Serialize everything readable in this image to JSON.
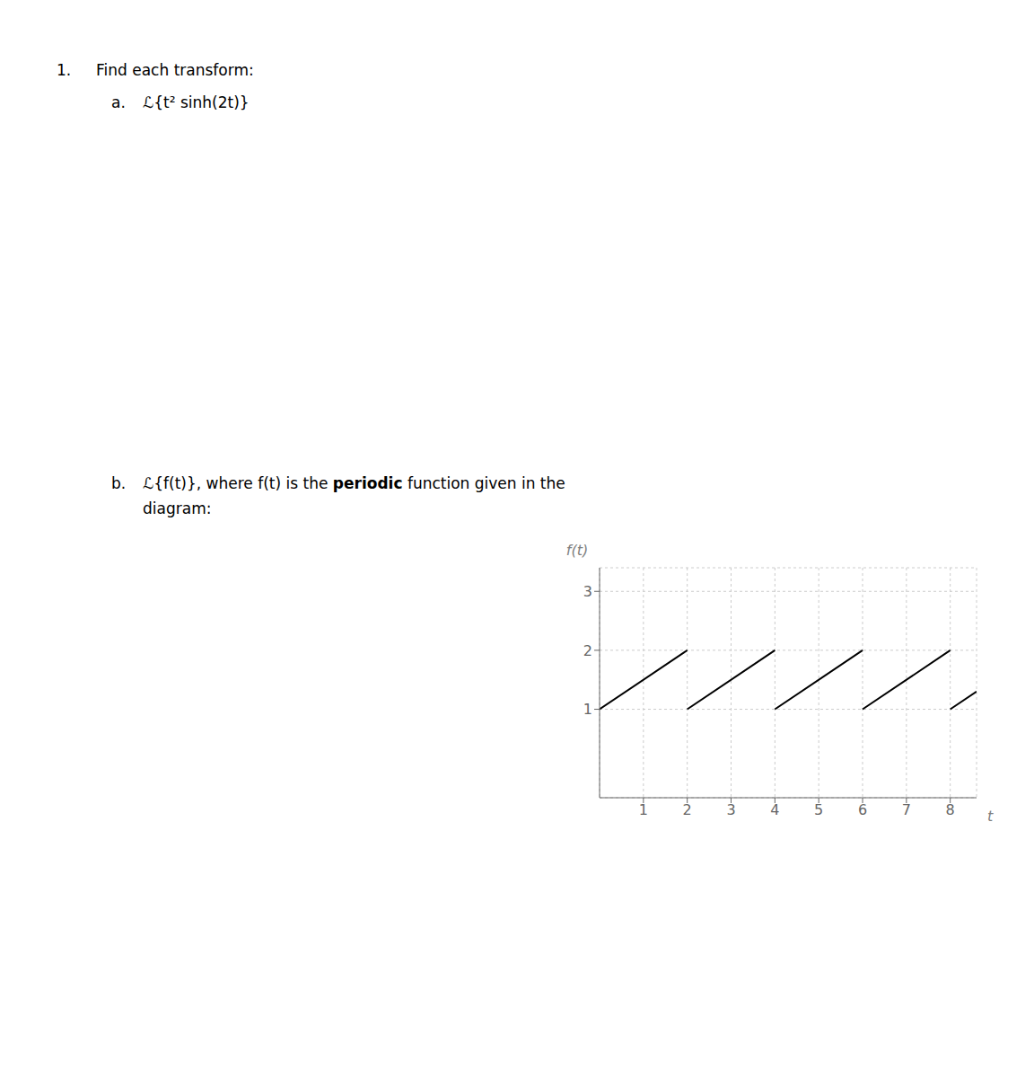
{
  "chart_data": {
    "type": "line",
    "xlabel": "t",
    "ylabel": "f(t)",
    "x": [
      0,
      2,
      2,
      2,
      4,
      4,
      4,
      6,
      6,
      6,
      8,
      8,
      8,
      8.6
    ],
    "values": [
      1,
      2,
      null,
      1,
      2,
      null,
      1,
      2,
      null,
      1,
      2,
      null,
      1,
      1.3
    ],
    "color": "#000000",
    "xlim": [
      0,
      8.6
    ],
    "ylim": [
      -0.5,
      3.4
    ],
    "xticks": [
      1,
      2,
      3,
      4,
      5,
      6,
      7,
      8
    ],
    "yticks": [
      1,
      2,
      3
    ],
    "grid": true,
    "annotations": [
      "1.",
      "Find each transform:",
      "a.",
      "ℒ{t² sinh(2t)}",
      "b.",
      "ℒ{f(t)}, where f(t) is the",
      "periodic",
      "function given in the",
      "diagram:"
    ]
  }
}
